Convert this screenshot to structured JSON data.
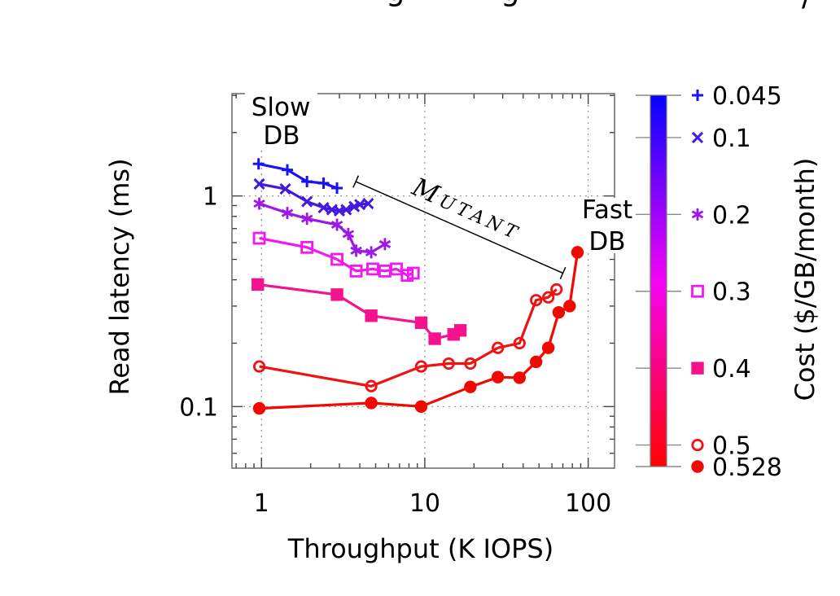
{
  "page": {
    "cropped_title_fragments": [
      "g",
      "g",
      "/"
    ]
  },
  "chart_data": {
    "type": "line",
    "xlabel": "Throughput (K IOPS)",
    "ylabel": "Read latency (ms)",
    "x_scale": "log",
    "y_scale": "log",
    "xlim": [
      0.66,
      145
    ],
    "ylim": [
      0.051,
      3.06
    ],
    "x_ticks": [
      1,
      10,
      100
    ],
    "y_ticks": [
      1,
      0.1
    ],
    "grid": true,
    "colorbar": {
      "label": "Cost ($/GB/month)",
      "min": 0.045,
      "max": 0.528,
      "gradient": [
        "#0404ff",
        "#f504f5",
        "#ff0400"
      ]
    },
    "annotations": {
      "slow_db": {
        "line1": "Slow",
        "line2": "DB"
      },
      "fast_db": {
        "line1": "Fast",
        "line2": "DB"
      },
      "mutant": {
        "first_letter": "M",
        "rest": "UTANT",
        "line_from": [
          3.78,
          1.17
        ],
        "line_to": [
          70,
          0.43
        ]
      }
    },
    "series": [
      {
        "cost": 0.045,
        "label": "0.045",
        "marker": "plus",
        "color": "#1b12f2",
        "points": [
          [
            0.96,
            1.42
          ],
          [
            1.44,
            1.33
          ],
          [
            1.9,
            1.17
          ],
          [
            2.4,
            1.15
          ],
          [
            2.9,
            1.09
          ]
        ]
      },
      {
        "cost": 0.1,
        "label": "0.1",
        "marker": "cross",
        "color": "#4318e0",
        "points": [
          [
            0.97,
            1.14
          ],
          [
            1.4,
            1.08
          ],
          [
            1.9,
            0.94
          ],
          [
            2.4,
            0.88
          ],
          [
            2.7,
            0.86
          ],
          [
            3.0,
            0.85
          ],
          [
            3.3,
            0.86
          ],
          [
            3.7,
            0.89
          ],
          [
            4.0,
            0.91
          ],
          [
            4.5,
            0.92
          ]
        ]
      },
      {
        "cost": 0.2,
        "label": "0.2",
        "marker": "asterisk",
        "color": "#9c18e8",
        "points": [
          [
            0.97,
            0.92
          ],
          [
            1.44,
            0.83
          ],
          [
            1.9,
            0.78
          ],
          [
            2.9,
            0.73
          ],
          [
            3.4,
            0.66
          ],
          [
            3.8,
            0.55
          ],
          [
            4.7,
            0.54
          ],
          [
            5.7,
            0.59
          ]
        ]
      },
      {
        "cost": 0.3,
        "label": "0.3",
        "marker": "square-open",
        "color": "#f118f1",
        "points": [
          [
            0.97,
            0.63
          ],
          [
            1.9,
            0.57
          ],
          [
            2.9,
            0.5
          ],
          [
            3.8,
            0.44
          ],
          [
            4.8,
            0.45
          ],
          [
            5.7,
            0.44
          ],
          [
            6.7,
            0.45
          ],
          [
            7.8,
            0.42
          ],
          [
            8.5,
            0.43
          ]
        ]
      },
      {
        "cost": 0.4,
        "label": "0.4",
        "marker": "square-filled",
        "color": "#f5128d",
        "points": [
          [
            0.95,
            0.38
          ],
          [
            2.9,
            0.34
          ],
          [
            4.7,
            0.27
          ],
          [
            9.5,
            0.25
          ],
          [
            11.5,
            0.21
          ],
          [
            15,
            0.22
          ],
          [
            16.5,
            0.23
          ]
        ]
      },
      {
        "cost": 0.5,
        "label": "0.5",
        "marker": "circle-open",
        "color": "#f21111",
        "points": [
          [
            0.97,
            0.155
          ],
          [
            4.7,
            0.125
          ],
          [
            9.5,
            0.155
          ],
          [
            14,
            0.16
          ],
          [
            19,
            0.16
          ],
          [
            28,
            0.19
          ],
          [
            38,
            0.2
          ],
          [
            48,
            0.32
          ],
          [
            57,
            0.33
          ],
          [
            64,
            0.36
          ]
        ]
      },
      {
        "cost": 0.528,
        "label": "0.528",
        "marker": "circle-filled",
        "color": "#f10800",
        "points": [
          [
            0.97,
            0.098
          ],
          [
            4.7,
            0.104
          ],
          [
            9.5,
            0.1
          ],
          [
            19,
            0.124
          ],
          [
            28,
            0.138
          ],
          [
            38,
            0.137
          ],
          [
            48,
            0.163
          ],
          [
            57,
            0.19
          ],
          [
            66,
            0.28
          ],
          [
            77,
            0.3
          ],
          [
            86,
            0.54
          ]
        ]
      }
    ]
  }
}
